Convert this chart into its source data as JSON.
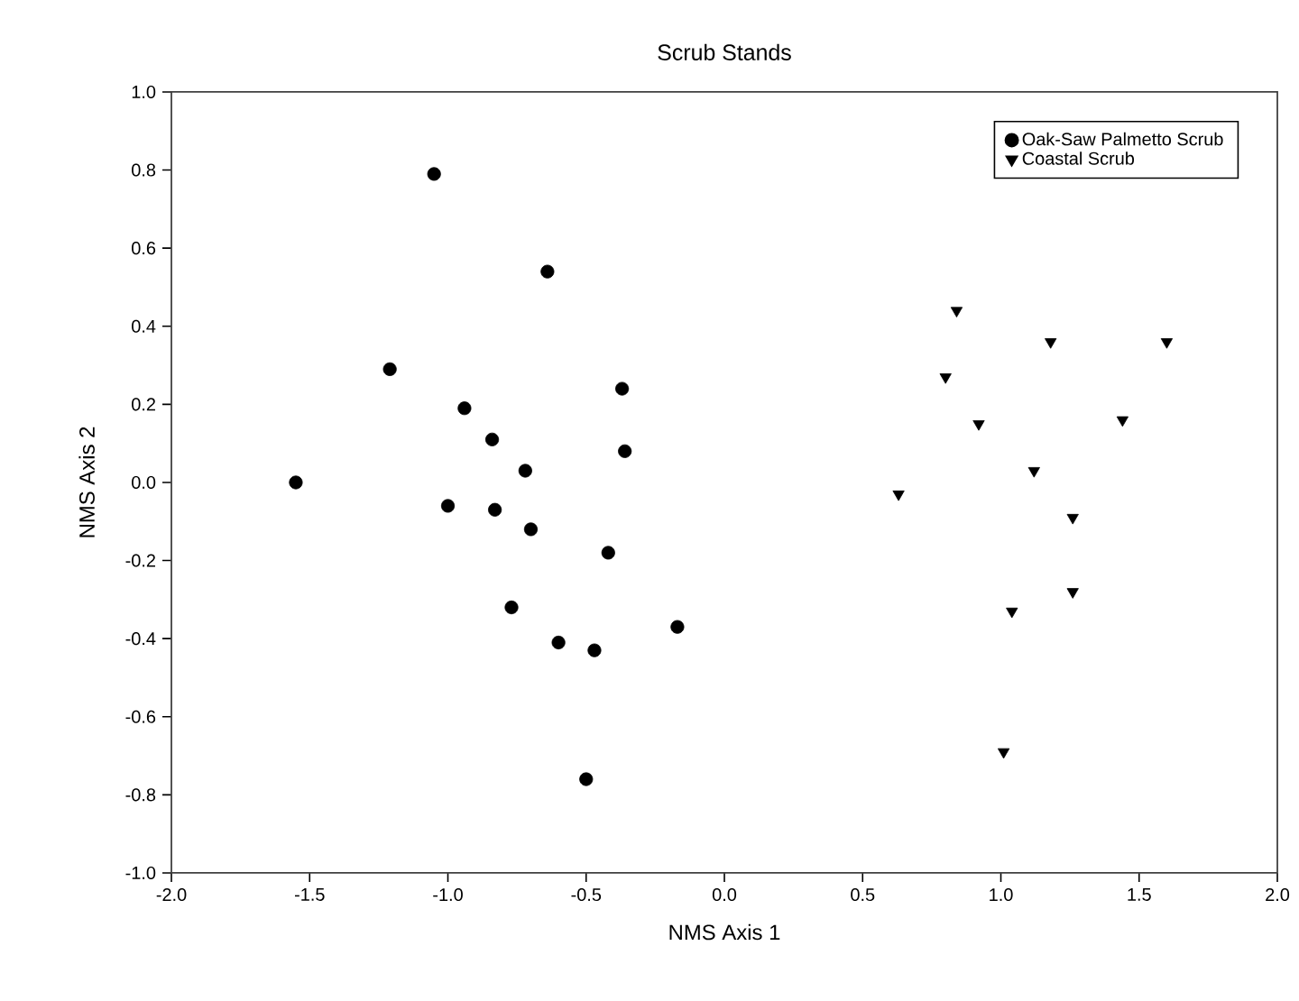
{
  "chart_data": {
    "type": "scatter",
    "title": "Scrub Stands",
    "xlabel": "NMS Axis 1",
    "ylabel": "NMS Axis 2",
    "xlim": [
      -2,
      2
    ],
    "ylim": [
      -1,
      1
    ],
    "xticks": [
      {
        "value": -2,
        "label": "-2.0"
      },
      {
        "value": -1.5,
        "label": "-1.5"
      },
      {
        "value": -1,
        "label": "-1.0"
      },
      {
        "value": -0.5,
        "label": "-0.5"
      },
      {
        "value": 0,
        "label": "0.0"
      },
      {
        "value": 0.5,
        "label": "0.5"
      },
      {
        "value": 1,
        "label": "1.0"
      },
      {
        "value": 1.5,
        "label": "1.5"
      },
      {
        "value": 2,
        "label": "2.0"
      }
    ],
    "yticks": [
      {
        "value": -1,
        "label": "-1.0"
      },
      {
        "value": -0.8,
        "label": "-0.8"
      },
      {
        "value": -0.6,
        "label": "-0.6"
      },
      {
        "value": -0.4,
        "label": "-0.4"
      },
      {
        "value": -0.2,
        "label": "-0.2"
      },
      {
        "value": 0,
        "label": "0.0"
      },
      {
        "value": 0.2,
        "label": "0.2"
      },
      {
        "value": 0.4,
        "label": "0.4"
      },
      {
        "value": 0.6,
        "label": "0.6"
      },
      {
        "value": 0.8,
        "label": "0.8"
      },
      {
        "value": 1,
        "label": "1.0"
      }
    ],
    "legend": "top right",
    "grid": false,
    "series": [
      {
        "name": "Oak-Saw Palmetto Scrub",
        "color": "#000000",
        "marker": "circle",
        "x": [
          -1.05,
          -0.64,
          -1.21,
          -0.37,
          -0.94,
          -0.84,
          -0.36,
          -0.72,
          -1.55,
          -1.0,
          -0.83,
          -0.7,
          -0.42,
          -0.77,
          -0.6,
          -0.47,
          -0.17,
          -0.5
        ],
        "values": [
          0.79,
          0.54,
          0.29,
          0.24,
          0.19,
          0.11,
          0.08,
          0.03,
          0.0,
          -0.06,
          -0.07,
          -0.12,
          -0.18,
          -0.32,
          -0.41,
          -0.43,
          -0.37,
          -0.76
        ]
      },
      {
        "name": "Coastal Scrub",
        "color": "#000000",
        "marker": "triangle",
        "x": [
          0.84,
          1.18,
          1.6,
          0.8,
          0.92,
          1.44,
          1.12,
          0.63,
          1.26,
          1.26,
          1.04,
          1.01
        ],
        "values": [
          0.44,
          0.36,
          0.36,
          0.27,
          0.15,
          0.16,
          0.03,
          -0.03,
          -0.09,
          -0.28,
          -0.33,
          -0.69
        ]
      }
    ]
  }
}
